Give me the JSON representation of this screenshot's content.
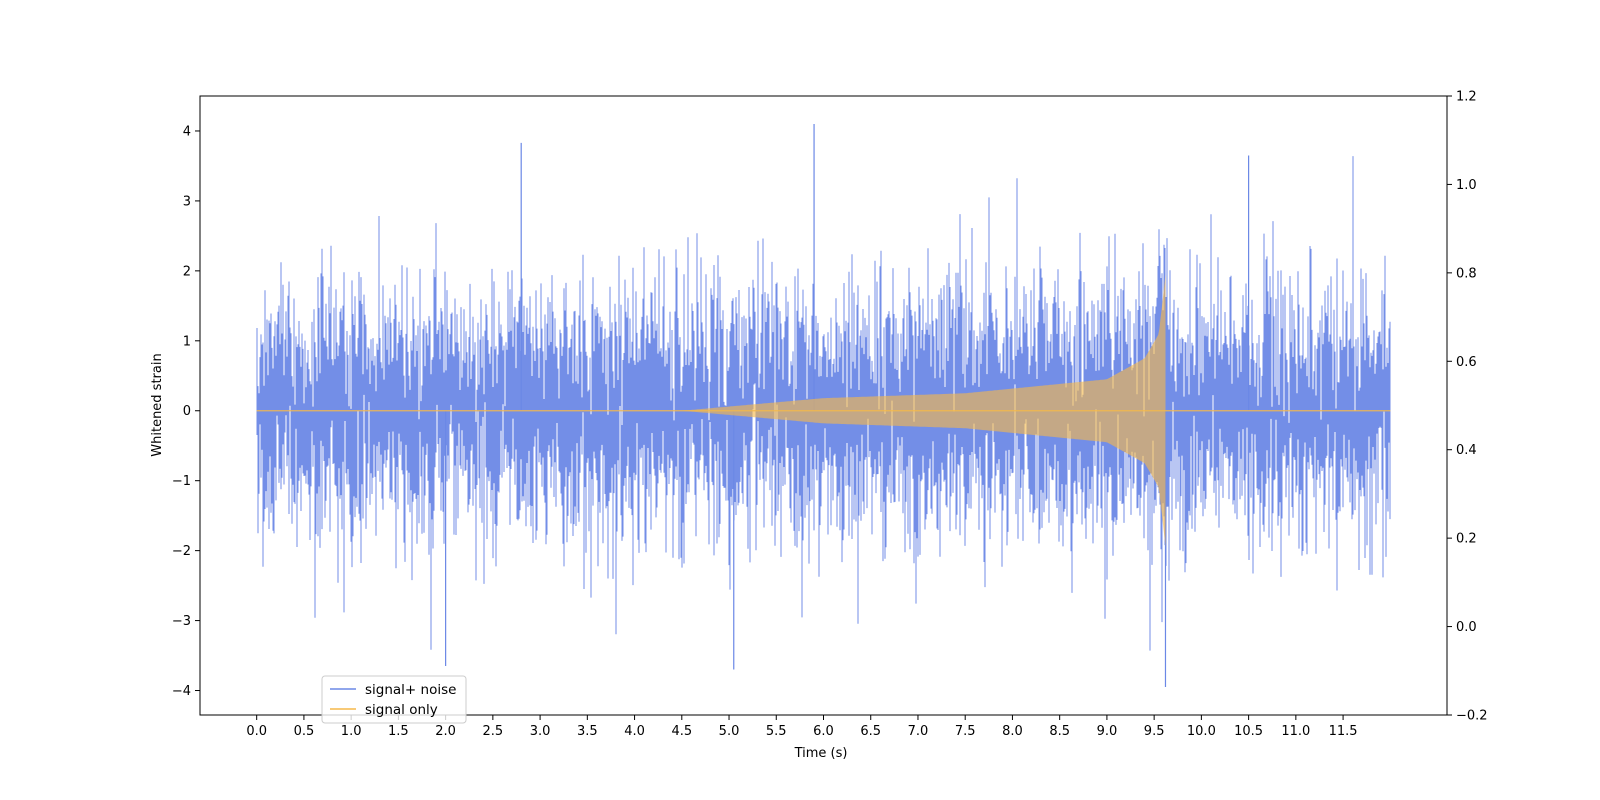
{
  "chart_data": {
    "type": "line",
    "title": "",
    "xlabel": "Time (s)",
    "ylabel": "Whitened strain",
    "xlim": [
      -0.6,
      12.6
    ],
    "ylim": [
      -4.35,
      4.5
    ],
    "y2lim": [
      -0.2,
      1.2
    ],
    "x_ticks": [
      "0.0",
      "0.5",
      "1.0",
      "1.5",
      "2.0",
      "2.5",
      "3.0",
      "3.5",
      "4.0",
      "4.5",
      "5.0",
      "5.5",
      "6.0",
      "6.5",
      "7.0",
      "7.5",
      "8.0",
      "8.5",
      "9.0",
      "9.5",
      "10.0",
      "10.5",
      "11.0",
      "11.5"
    ],
    "y_ticks": [
      "4",
      "3",
      "2",
      "1",
      "0",
      "−1",
      "−2",
      "−3",
      "−4"
    ],
    "y2_ticks": [
      "1.2",
      "1.0",
      "0.8",
      "0.6",
      "0.4",
      "0.2",
      "0.0",
      "−0.2"
    ],
    "grid": false,
    "legend_position": "lower-left",
    "series": [
      {
        "name": "signal+ noise",
        "color": "#6b88e6",
        "description_values": {
          "t_start": 0.0,
          "t_end": 12.0,
          "typical_envelope": [
            -2.0,
            2.0
          ],
          "max_peak": 4.1,
          "max_peak_time": 5.9,
          "min_trough": -3.95,
          "min_trough_time": 9.62
        }
      },
      {
        "name": "signal only",
        "color": "#f5b84a",
        "description_values": {
          "t_start": 0.0,
          "t_end": 12.0,
          "chirp_start": 4.5,
          "merger_time": 9.62,
          "amplitude_at": [
            [
              4.5,
              0.0
            ],
            [
              6.0,
              0.18
            ],
            [
              7.5,
              0.25
            ],
            [
              9.0,
              0.45
            ],
            [
              9.4,
              0.75
            ],
            [
              9.55,
              1.1
            ],
            [
              9.62,
              1.95
            ]
          ]
        }
      }
    ]
  }
}
